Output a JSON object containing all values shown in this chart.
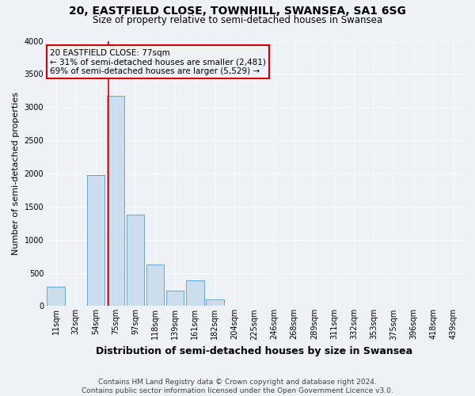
{
  "title": "20, EASTFIELD CLOSE, TOWNHILL, SWANSEA, SA1 6SG",
  "subtitle": "Size of property relative to semi-detached houses in Swansea",
  "xlabel": "Distribution of semi-detached houses by size in Swansea",
  "ylabel": "Number of semi-detached properties",
  "bins": [
    "11sqm",
    "32sqm",
    "54sqm",
    "75sqm",
    "97sqm",
    "118sqm",
    "139sqm",
    "161sqm",
    "182sqm",
    "204sqm",
    "225sqm",
    "246sqm",
    "268sqm",
    "289sqm",
    "311sqm",
    "332sqm",
    "353sqm",
    "375sqm",
    "396sqm",
    "418sqm",
    "439sqm"
  ],
  "counts": [
    295,
    0,
    1980,
    3170,
    1380,
    620,
    230,
    390,
    100,
    10,
    0,
    0,
    0,
    0,
    0,
    0,
    0,
    0,
    0,
    0,
    0
  ],
  "property_bin_index": 3,
  "annotation_title": "20 EASTFIELD CLOSE: 77sqm",
  "annotation_line1": "← 31% of semi-detached houses are smaller (2,481)",
  "annotation_line2": "69% of semi-detached houses are larger (5,529) →",
  "bar_color": "#ccdded",
  "bar_edge_color": "#5599cc",
  "redline_color": "#cc0000",
  "annotation_box_edgecolor": "#cc0000",
  "background_color": "#edf2f7",
  "grid_color": "#ffffff",
  "footer": "Contains HM Land Registry data © Crown copyright and database right 2024.\nContains public sector information licensed under the Open Government Licence v3.0.",
  "ylim": [
    0,
    4000
  ],
  "yticks": [
    0,
    500,
    1000,
    1500,
    2000,
    2500,
    3000,
    3500,
    4000
  ],
  "title_fontsize": 10,
  "subtitle_fontsize": 8.5,
  "ylabel_fontsize": 8,
  "xlabel_fontsize": 9,
  "tick_fontsize": 7,
  "footer_fontsize": 6.5
}
